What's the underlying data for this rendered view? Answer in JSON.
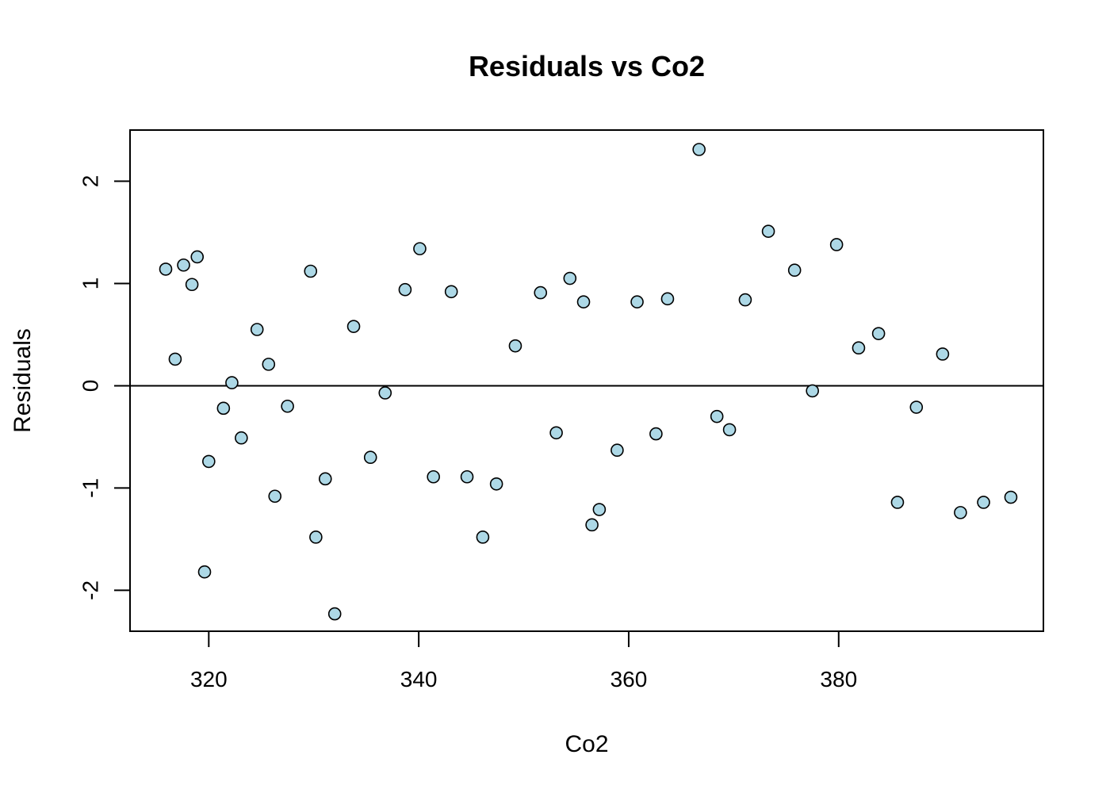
{
  "chart_data": {
    "type": "scatter",
    "title": "Residuals vs Co2",
    "xlabel": "Co2",
    "ylabel": "Residuals",
    "xlim": [
      312.5,
      399.5
    ],
    "ylim": [
      -2.4,
      2.5
    ],
    "x_ticks": [
      320,
      340,
      360,
      380
    ],
    "y_ticks": [
      -2,
      -1,
      0,
      1,
      2
    ],
    "x_tick_labels": [
      "320",
      "340",
      "360",
      "380"
    ],
    "y_tick_labels": [
      "-2",
      "-1",
      "0",
      "1",
      "2"
    ],
    "reference_line_y": 0,
    "grid": false,
    "legend": "none",
    "point_color": "#add8e6",
    "point_edge_color": "#000000",
    "points": [
      {
        "x": 315.9,
        "y": 1.14
      },
      {
        "x": 316.8,
        "y": 0.26
      },
      {
        "x": 317.6,
        "y": 1.18
      },
      {
        "x": 318.4,
        "y": 0.99
      },
      {
        "x": 318.9,
        "y": 1.26
      },
      {
        "x": 319.6,
        "y": -1.82
      },
      {
        "x": 320.0,
        "y": -0.74
      },
      {
        "x": 321.4,
        "y": -0.22
      },
      {
        "x": 322.2,
        "y": 0.03
      },
      {
        "x": 323.1,
        "y": -0.51
      },
      {
        "x": 324.6,
        "y": 0.55
      },
      {
        "x": 325.7,
        "y": 0.21
      },
      {
        "x": 326.3,
        "y": -1.08
      },
      {
        "x": 327.5,
        "y": -0.2
      },
      {
        "x": 329.7,
        "y": 1.12
      },
      {
        "x": 330.2,
        "y": -1.48
      },
      {
        "x": 331.1,
        "y": -0.91
      },
      {
        "x": 332.0,
        "y": -2.23
      },
      {
        "x": 333.8,
        "y": 0.58
      },
      {
        "x": 335.4,
        "y": -0.7
      },
      {
        "x": 336.8,
        "y": -0.07
      },
      {
        "x": 338.7,
        "y": 0.94
      },
      {
        "x": 340.1,
        "y": 1.34
      },
      {
        "x": 341.4,
        "y": -0.89
      },
      {
        "x": 343.1,
        "y": 0.92
      },
      {
        "x": 344.6,
        "y": -0.89
      },
      {
        "x": 346.1,
        "y": -1.48
      },
      {
        "x": 347.4,
        "y": -0.96
      },
      {
        "x": 349.2,
        "y": 0.39
      },
      {
        "x": 351.6,
        "y": 0.91
      },
      {
        "x": 353.1,
        "y": -0.46
      },
      {
        "x": 354.4,
        "y": 1.05
      },
      {
        "x": 355.7,
        "y": 0.82
      },
      {
        "x": 356.5,
        "y": -1.36
      },
      {
        "x": 357.2,
        "y": -1.21
      },
      {
        "x": 358.9,
        "y": -0.63
      },
      {
        "x": 360.8,
        "y": 0.82
      },
      {
        "x": 362.6,
        "y": -0.47
      },
      {
        "x": 363.7,
        "y": 0.85
      },
      {
        "x": 366.7,
        "y": 2.31
      },
      {
        "x": 368.4,
        "y": -0.3
      },
      {
        "x": 369.6,
        "y": -0.43
      },
      {
        "x": 371.1,
        "y": 0.84
      },
      {
        "x": 373.3,
        "y": 1.51
      },
      {
        "x": 375.8,
        "y": 1.13
      },
      {
        "x": 377.5,
        "y": -0.05
      },
      {
        "x": 379.8,
        "y": 1.38
      },
      {
        "x": 381.9,
        "y": 0.37
      },
      {
        "x": 383.8,
        "y": 0.51
      },
      {
        "x": 385.6,
        "y": -1.14
      },
      {
        "x": 387.4,
        "y": -0.21
      },
      {
        "x": 389.9,
        "y": 0.31
      },
      {
        "x": 391.6,
        "y": -1.24
      },
      {
        "x": 393.8,
        "y": -1.14
      },
      {
        "x": 396.4,
        "y": -1.09
      }
    ]
  }
}
